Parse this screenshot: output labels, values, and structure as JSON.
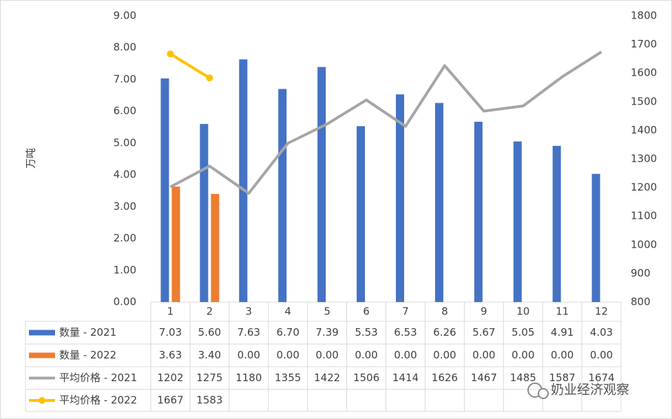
{
  "chart_data": {
    "type": "bar",
    "y_label": "万吨",
    "categories": [
      "1",
      "2",
      "3",
      "4",
      "5",
      "6",
      "7",
      "8",
      "9",
      "10",
      "11",
      "12"
    ],
    "series": [
      {
        "name": "数量 - 2021",
        "type": "bar",
        "color": "#4472c4",
        "axis": "y",
        "values": [
          7.03,
          5.6,
          7.63,
          6.7,
          7.39,
          5.53,
          6.53,
          6.26,
          5.67,
          5.05,
          4.91,
          4.03
        ],
        "value_labels": [
          "7.03",
          "5.60",
          "7.63",
          "6.70",
          "7.39",
          "5.53",
          "6.53",
          "6.26",
          "5.67",
          "5.05",
          "4.91",
          "4.03"
        ]
      },
      {
        "name": "数量 - 2022",
        "type": "bar",
        "color": "#ed7d31",
        "axis": "y",
        "values": [
          3.63,
          3.4,
          0,
          0,
          0,
          0,
          0,
          0,
          0,
          0,
          0,
          0
        ],
        "value_labels": [
          "3.63",
          "3.40",
          "0.00",
          "0.00",
          "0.00",
          "0.00",
          "0.00",
          "0.00",
          "0.00",
          "0.00",
          "0.00",
          "0.00"
        ]
      },
      {
        "name": "平均价格 - 2021",
        "type": "line",
        "color": "#a5a5a5",
        "axis": "y2",
        "values": [
          1202,
          1275,
          1180,
          1355,
          1422,
          1506,
          1414,
          1626,
          1467,
          1485,
          1587,
          1674
        ]
      },
      {
        "name": "平均价格 - 2022",
        "type": "line",
        "color": "#ffc000",
        "axis": "y2",
        "markers": true,
        "values": [
          1667,
          1583,
          null,
          null,
          null,
          null,
          null,
          null,
          null,
          null,
          null,
          null
        ]
      }
    ],
    "ylim": [
      0,
      9
    ],
    "yticks": [
      {
        "value": 0,
        "label": "0.00"
      },
      {
        "value": 1,
        "label": "1.00"
      },
      {
        "value": 2,
        "label": "2.00"
      },
      {
        "value": 3,
        "label": "3.00"
      },
      {
        "value": 4,
        "label": "4.00"
      },
      {
        "value": 5,
        "label": "5.00"
      },
      {
        "value": 6,
        "label": "6.00"
      },
      {
        "value": 7,
        "label": "7.00"
      },
      {
        "value": 8,
        "label": "8.00"
      },
      {
        "value": 9,
        "label": "9.00"
      }
    ],
    "y2lim": [
      800,
      1800
    ],
    "y2ticks": [
      800,
      900,
      1000,
      1100,
      1200,
      1300,
      1400,
      1500,
      1600,
      1700,
      1800
    ],
    "grid": false,
    "watermark": "奶业经济观察"
  }
}
